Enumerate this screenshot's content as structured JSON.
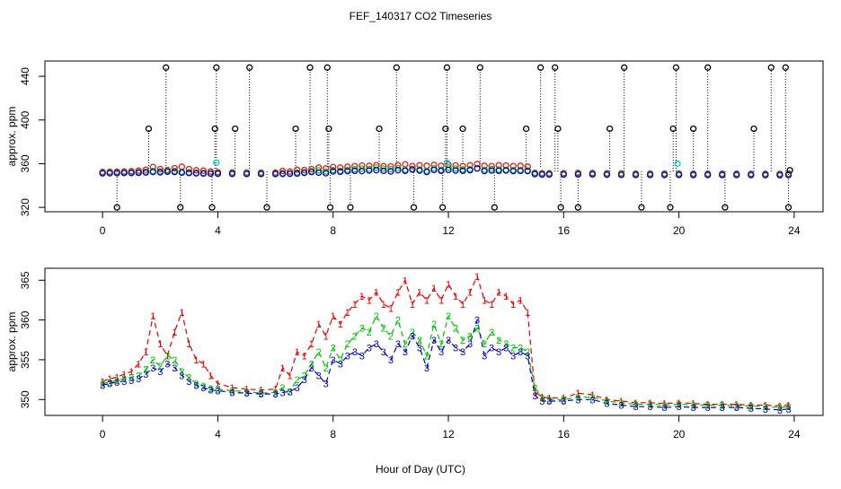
{
  "chart_data": {
    "type": "scatter",
    "title": "FEF_140317  CO2 Timeseries",
    "xlabel": "Hour of Day (UTC)",
    "panels": [
      {
        "name": "top-panel",
        "ylabel": "approx. ppm",
        "xlim": [
          -2,
          25
        ],
        "ylim": [
          316,
          454
        ],
        "xticks": [
          "0",
          "4",
          "8",
          "12",
          "16",
          "20",
          "24"
        ],
        "xtick_values": [
          0,
          4,
          8,
          12,
          16,
          20,
          24
        ],
        "yticks": [
          "320",
          "360",
          "400",
          "440"
        ],
        "ytick_values": [
          320,
          360,
          400,
          440
        ],
        "spike_points": [
          {
            "x": 0.5,
            "y": 320
          },
          {
            "x": 1.6,
            "y": 392
          },
          {
            "x": 2.2,
            "y": 448
          },
          {
            "x": 2.7,
            "y": 320
          },
          {
            "x": 3.8,
            "y": 320
          },
          {
            "x": 3.9,
            "y": 392
          },
          {
            "x": 3.95,
            "y": 448
          },
          {
            "x": 4.6,
            "y": 392
          },
          {
            "x": 5.1,
            "y": 448
          },
          {
            "x": 5.7,
            "y": 320
          },
          {
            "x": 6.7,
            "y": 392
          },
          {
            "x": 7.2,
            "y": 448
          },
          {
            "x": 7.8,
            "y": 448
          },
          {
            "x": 7.85,
            "y": 392
          },
          {
            "x": 7.9,
            "y": 320
          },
          {
            "x": 8.6,
            "y": 320
          },
          {
            "x": 9.6,
            "y": 392
          },
          {
            "x": 10.2,
            "y": 448
          },
          {
            "x": 10.8,
            "y": 320
          },
          {
            "x": 11.8,
            "y": 320
          },
          {
            "x": 11.9,
            "y": 392
          },
          {
            "x": 11.95,
            "y": 448
          },
          {
            "x": 12.5,
            "y": 392
          },
          {
            "x": 13.1,
            "y": 448
          },
          {
            "x": 13.6,
            "y": 320
          },
          {
            "x": 14.7,
            "y": 392
          },
          {
            "x": 15.2,
            "y": 448
          },
          {
            "x": 15.7,
            "y": 448
          },
          {
            "x": 15.8,
            "y": 392
          },
          {
            "x": 15.9,
            "y": 320
          },
          {
            "x": 16.5,
            "y": 320
          },
          {
            "x": 17.6,
            "y": 392
          },
          {
            "x": 18.1,
            "y": 448
          },
          {
            "x": 18.7,
            "y": 320
          },
          {
            "x": 19.7,
            "y": 320
          },
          {
            "x": 19.8,
            "y": 392
          },
          {
            "x": 19.9,
            "y": 448
          },
          {
            "x": 20.5,
            "y": 392
          },
          {
            "x": 21.0,
            "y": 448
          },
          {
            "x": 21.6,
            "y": 320
          },
          {
            "x": 22.6,
            "y": 392
          },
          {
            "x": 23.2,
            "y": 448
          },
          {
            "x": 23.7,
            "y": 448
          },
          {
            "x": 23.8,
            "y": 320
          },
          {
            "x": 23.85,
            "y": 354
          }
        ]
      },
      {
        "name": "bottom-panel",
        "ylabel": "approx. ppm",
        "xlim": [
          -2,
          25
        ],
        "ylim": [
          348,
          366.5
        ],
        "xticks": [
          "0",
          "4",
          "8",
          "12",
          "16",
          "20",
          "24"
        ],
        "xtick_values": [
          0,
          4,
          8,
          12,
          16,
          20,
          24
        ],
        "yticks": [
          "350",
          "355",
          "360",
          "365"
        ],
        "ytick_values": [
          350,
          355,
          360,
          365
        ]
      }
    ],
    "series": [
      {
        "name": "1",
        "color": "#e00000",
        "points": [
          [
            0,
            352.3
          ],
          [
            0.25,
            352.6
          ],
          [
            0.5,
            352.8
          ],
          [
            0.75,
            353.2
          ],
          [
            1.0,
            353.5
          ],
          [
            1.25,
            354.5
          ],
          [
            1.5,
            356.0
          ],
          [
            1.75,
            360.5
          ],
          [
            2.0,
            357.0
          ],
          [
            2.25,
            355.5
          ],
          [
            2.5,
            358.5
          ],
          [
            2.75,
            361.0
          ],
          [
            3.0,
            357.0
          ],
          [
            3.25,
            355.0
          ],
          [
            3.5,
            354.5
          ],
          [
            3.75,
            353.0
          ],
          [
            4.0,
            352.0
          ],
          [
            4.5,
            351.5
          ],
          [
            5.0,
            351.3
          ],
          [
            5.5,
            351.2
          ],
          [
            6.0,
            351.3
          ],
          [
            6.25,
            354.0
          ],
          [
            6.5,
            353.0
          ],
          [
            6.75,
            356.0
          ],
          [
            7.0,
            355.5
          ],
          [
            7.25,
            357.0
          ],
          [
            7.5,
            359.5
          ],
          [
            7.75,
            358.0
          ],
          [
            8.0,
            360.5
          ],
          [
            8.25,
            359.5
          ],
          [
            8.5,
            361.0
          ],
          [
            8.75,
            362.0
          ],
          [
            9.0,
            363.0
          ],
          [
            9.25,
            362.5
          ],
          [
            9.5,
            363.5
          ],
          [
            9.75,
            362.0
          ],
          [
            10.0,
            361.5
          ],
          [
            10.25,
            363.5
          ],
          [
            10.5,
            365.0
          ],
          [
            10.75,
            362.0
          ],
          [
            11.0,
            363.5
          ],
          [
            11.25,
            362.5
          ],
          [
            11.5,
            364.0
          ],
          [
            11.75,
            362.5
          ],
          [
            12.0,
            364.5
          ],
          [
            12.25,
            363.0
          ],
          [
            12.5,
            362.0
          ],
          [
            12.75,
            363.5
          ],
          [
            13.0,
            365.5
          ],
          [
            13.25,
            362.5
          ],
          [
            13.5,
            362.0
          ],
          [
            13.75,
            363.5
          ],
          [
            14.0,
            363.0
          ],
          [
            14.25,
            362.0
          ],
          [
            14.5,
            362.5
          ],
          [
            14.75,
            361.0
          ],
          [
            15.0,
            351.0
          ],
          [
            15.25,
            350.3
          ],
          [
            15.5,
            350.2
          ],
          [
            16.0,
            350.2
          ],
          [
            16.5,
            350.8
          ],
          [
            17.0,
            350.6
          ],
          [
            17.5,
            350.0
          ],
          [
            18.0,
            349.8
          ],
          [
            18.5,
            349.6
          ],
          [
            19.0,
            349.6
          ],
          [
            19.5,
            349.5
          ],
          [
            20.0,
            349.6
          ],
          [
            20.5,
            349.5
          ],
          [
            21.0,
            349.4
          ],
          [
            21.5,
            349.4
          ],
          [
            22.0,
            349.4
          ],
          [
            22.5,
            349.3
          ],
          [
            23.0,
            349.3
          ],
          [
            23.5,
            349.2
          ],
          [
            23.8,
            349.3
          ]
        ]
      },
      {
        "name": "2",
        "color": "#00c000",
        "points": [
          [
            0,
            352.0
          ],
          [
            0.25,
            352.2
          ],
          [
            0.5,
            352.4
          ],
          [
            0.75,
            352.6
          ],
          [
            1.0,
            352.8
          ],
          [
            1.25,
            353.0
          ],
          [
            1.5,
            353.8
          ],
          [
            1.75,
            355.0
          ],
          [
            2.0,
            354.2
          ],
          [
            2.25,
            355.5
          ],
          [
            2.5,
            355.0
          ],
          [
            2.75,
            353.5
          ],
          [
            3.0,
            352.8
          ],
          [
            3.25,
            352.0
          ],
          [
            3.5,
            351.7
          ],
          [
            3.75,
            351.4
          ],
          [
            4.0,
            351.3
          ],
          [
            4.5,
            351.1
          ],
          [
            5.0,
            351.0
          ],
          [
            5.5,
            350.8
          ],
          [
            6.0,
            350.9
          ],
          [
            6.25,
            351.5
          ],
          [
            6.5,
            351.0
          ],
          [
            6.75,
            352.5
          ],
          [
            7.0,
            353.0
          ],
          [
            7.25,
            354.5
          ],
          [
            7.5,
            356.0
          ],
          [
            7.75,
            354.0
          ],
          [
            8.0,
            356.5
          ],
          [
            8.25,
            355.0
          ],
          [
            8.5,
            357.0
          ],
          [
            8.75,
            358.0
          ],
          [
            9.0,
            359.0
          ],
          [
            9.25,
            358.5
          ],
          [
            9.5,
            360.5
          ],
          [
            9.75,
            359.0
          ],
          [
            10.0,
            358.0
          ],
          [
            10.25,
            360.0
          ],
          [
            10.5,
            357.0
          ],
          [
            10.75,
            358.5
          ],
          [
            11.0,
            357.5
          ],
          [
            11.25,
            355.5
          ],
          [
            11.5,
            359.5
          ],
          [
            11.75,
            357.0
          ],
          [
            12.0,
            360.5
          ],
          [
            12.25,
            359.0
          ],
          [
            12.5,
            357.5
          ],
          [
            12.75,
            358.0
          ],
          [
            13.0,
            359.0
          ],
          [
            13.25,
            357.0
          ],
          [
            13.5,
            358.5
          ],
          [
            13.75,
            357.5
          ],
          [
            14.0,
            357.0
          ],
          [
            14.25,
            356.5
          ],
          [
            14.5,
            356.5
          ],
          [
            14.75,
            356.0
          ],
          [
            15.0,
            351.5
          ],
          [
            15.25,
            350.2
          ],
          [
            15.5,
            350.0
          ],
          [
            16.0,
            350.0
          ],
          [
            16.5,
            350.3
          ],
          [
            17.0,
            350.3
          ],
          [
            17.5,
            349.8
          ],
          [
            18.0,
            349.6
          ],
          [
            18.5,
            349.4
          ],
          [
            19.0,
            349.4
          ],
          [
            19.5,
            349.3
          ],
          [
            20.0,
            349.4
          ],
          [
            20.5,
            349.3
          ],
          [
            21.0,
            349.3
          ],
          [
            21.5,
            349.3
          ],
          [
            22.0,
            349.2
          ],
          [
            22.5,
            349.2
          ],
          [
            23.0,
            349.1
          ],
          [
            23.5,
            349.0
          ],
          [
            23.8,
            349.1
          ]
        ]
      },
      {
        "name": "3",
        "color": "#0000c0",
        "points": [
          [
            0,
            351.8
          ],
          [
            0.25,
            352.0
          ],
          [
            0.5,
            352.2
          ],
          [
            0.75,
            352.3
          ],
          [
            1.0,
            352.4
          ],
          [
            1.25,
            352.6
          ],
          [
            1.5,
            353.2
          ],
          [
            1.75,
            354.0
          ],
          [
            2.0,
            353.5
          ],
          [
            2.25,
            354.5
          ],
          [
            2.5,
            354.0
          ],
          [
            2.75,
            353.0
          ],
          [
            3.0,
            352.3
          ],
          [
            3.25,
            351.8
          ],
          [
            3.5,
            351.5
          ],
          [
            3.75,
            351.2
          ],
          [
            4.0,
            351.1
          ],
          [
            4.5,
            350.9
          ],
          [
            5.0,
            350.8
          ],
          [
            5.5,
            350.7
          ],
          [
            6.0,
            350.7
          ],
          [
            6.25,
            350.9
          ],
          [
            6.5,
            351.0
          ],
          [
            6.75,
            351.5
          ],
          [
            7.0,
            352.5
          ],
          [
            7.25,
            354.0
          ],
          [
            7.5,
            353.0
          ],
          [
            7.75,
            352.0
          ],
          [
            8.0,
            355.0
          ],
          [
            8.25,
            354.5
          ],
          [
            8.5,
            355.5
          ],
          [
            8.75,
            356.0
          ],
          [
            9.0,
            355.5
          ],
          [
            9.25,
            356.5
          ],
          [
            9.5,
            357.0
          ],
          [
            9.75,
            356.0
          ],
          [
            10.0,
            355.0
          ],
          [
            10.25,
            357.0
          ],
          [
            10.5,
            356.0
          ],
          [
            10.75,
            358.0
          ],
          [
            11.0,
            356.5
          ],
          [
            11.25,
            354.0
          ],
          [
            11.5,
            357.5
          ],
          [
            11.75,
            356.0
          ],
          [
            12.0,
            357.5
          ],
          [
            12.25,
            356.5
          ],
          [
            12.5,
            356.0
          ],
          [
            12.75,
            357.0
          ],
          [
            13.0,
            360.0
          ],
          [
            13.25,
            355.5
          ],
          [
            13.5,
            356.5
          ],
          [
            13.75,
            356.0
          ],
          [
            14.0,
            356.5
          ],
          [
            14.25,
            355.5
          ],
          [
            14.5,
            356.0
          ],
          [
            14.75,
            355.5
          ],
          [
            15.0,
            350.5
          ],
          [
            15.25,
            349.8
          ],
          [
            15.5,
            349.8
          ],
          [
            16.0,
            349.8
          ],
          [
            16.5,
            350.0
          ],
          [
            17.0,
            350.0
          ],
          [
            17.5,
            349.5
          ],
          [
            18.0,
            349.3
          ],
          [
            18.5,
            349.1
          ],
          [
            19.0,
            349.1
          ],
          [
            19.5,
            349.0
          ],
          [
            20.0,
            349.1
          ],
          [
            20.5,
            349.0
          ],
          [
            21.0,
            349.0
          ],
          [
            21.5,
            349.0
          ],
          [
            22.0,
            349.0
          ],
          [
            22.5,
            348.9
          ],
          [
            23.0,
            348.8
          ],
          [
            23.5,
            348.7
          ],
          [
            23.8,
            348.8
          ]
        ]
      }
    ]
  }
}
